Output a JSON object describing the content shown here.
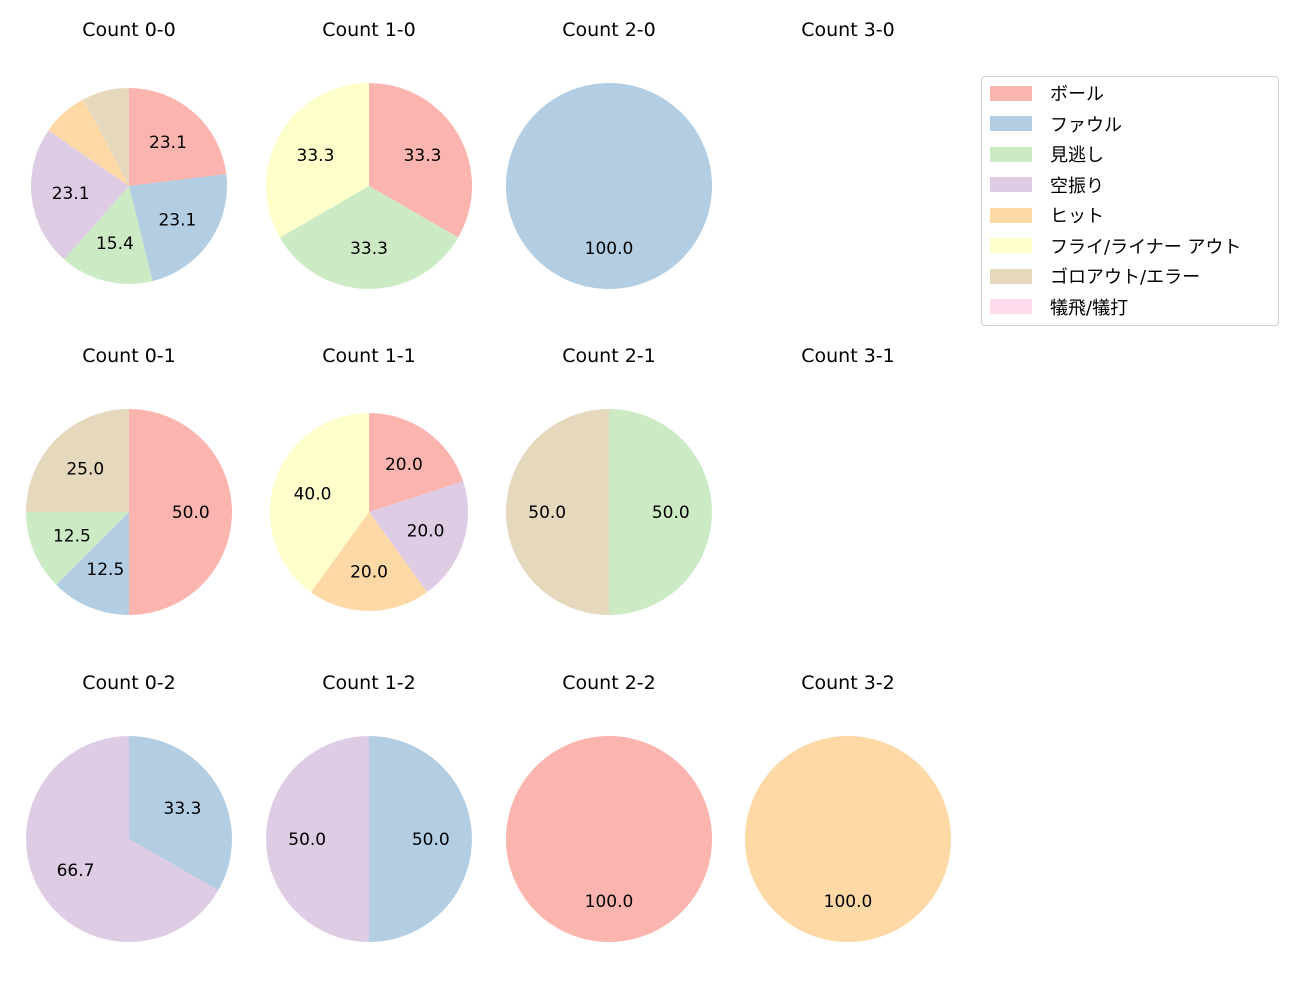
{
  "chart_data": {
    "type": "pie",
    "title": "",
    "colors": [
      "#fbb4ae",
      "#b3cde3",
      "#ccebc5",
      "#decbe4",
      "#fed9a6",
      "#ffffcc",
      "#e5d8bd",
      "#fddaec"
    ],
    "legend": {
      "position": "upper right",
      "entries": [
        "ボール",
        "ファウル",
        "見逃し",
        "空振り",
        "ヒット",
        "フライ/ライナー アウト",
        "ゴロアウト/エラー",
        "犠飛/犠打"
      ]
    },
    "charts": [
      {
        "title": "Count 0-0",
        "row": 0,
        "col": 0,
        "r": 98,
        "values": [
          23.1,
          23.1,
          15.4,
          23.1,
          7.7,
          0,
          7.7,
          0
        ]
      },
      {
        "title": "Count 1-0",
        "row": 0,
        "col": 1,
        "r": 103,
        "values": [
          33.3,
          0,
          33.3,
          0,
          0,
          33.3,
          0,
          0
        ]
      },
      {
        "title": "Count 2-0",
        "row": 0,
        "col": 2,
        "r": 103,
        "values": [
          0,
          100.0,
          0,
          0,
          0,
          0,
          0,
          0
        ]
      },
      {
        "title": "Count 3-0",
        "row": 0,
        "col": 3,
        "r": 0,
        "values": []
      },
      {
        "title": "Count 0-1",
        "row": 1,
        "col": 0,
        "r": 103,
        "values": [
          50.0,
          12.5,
          12.5,
          0,
          0,
          0,
          25.0,
          0
        ]
      },
      {
        "title": "Count 1-1",
        "row": 1,
        "col": 1,
        "r": 99,
        "values": [
          20.0,
          0,
          0,
          20.0,
          20.0,
          40.0,
          0,
          0
        ]
      },
      {
        "title": "Count 2-1",
        "row": 1,
        "col": 2,
        "r": 103,
        "values": [
          0,
          0,
          50.0,
          0,
          0,
          0,
          50.0,
          0
        ]
      },
      {
        "title": "Count 3-1",
        "row": 1,
        "col": 3,
        "r": 0,
        "values": []
      },
      {
        "title": "Count 0-2",
        "row": 2,
        "col": 0,
        "r": 103,
        "values": [
          0,
          33.3,
          0,
          66.7,
          0,
          0,
          0,
          0
        ]
      },
      {
        "title": "Count 1-2",
        "row": 2,
        "col": 1,
        "r": 103,
        "values": [
          0,
          50.0,
          0,
          50.0,
          0,
          0,
          0,
          0
        ]
      },
      {
        "title": "Count 2-2",
        "row": 2,
        "col": 2,
        "r": 103,
        "values": [
          100.0,
          0,
          0,
          0,
          0,
          0,
          0,
          0
        ]
      },
      {
        "title": "Count 3-2",
        "row": 2,
        "col": 3,
        "r": 103,
        "values": [
          0,
          0,
          0,
          0,
          100.0,
          0,
          0,
          0
        ]
      }
    ],
    "label_threshold": 10
  }
}
